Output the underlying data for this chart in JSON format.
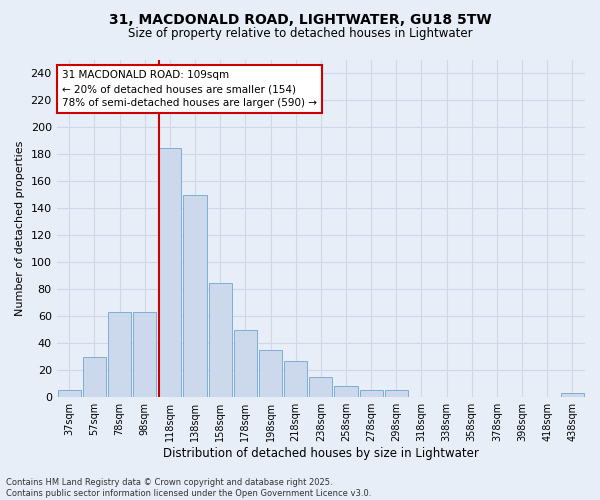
{
  "title_line1": "31, MACDONALD ROAD, LIGHTWATER, GU18 5TW",
  "title_line2": "Size of property relative to detached houses in Lightwater",
  "xlabel": "Distribution of detached houses by size in Lightwater",
  "ylabel": "Number of detached properties",
  "bins": [
    "37sqm",
    "57sqm",
    "78sqm",
    "98sqm",
    "118sqm",
    "138sqm",
    "158sqm",
    "178sqm",
    "198sqm",
    "218sqm",
    "238sqm",
    "258sqm",
    "278sqm",
    "298sqm",
    "318sqm",
    "338sqm",
    "358sqm",
    "378sqm",
    "398sqm",
    "418sqm",
    "438sqm"
  ],
  "values": [
    5,
    30,
    63,
    63,
    185,
    150,
    85,
    50,
    35,
    27,
    15,
    8,
    5,
    5,
    0,
    0,
    0,
    0,
    0,
    0,
    3
  ],
  "bar_color": "#ccd9ed",
  "bar_edge_color": "#7bafd4",
  "background_color": "#e8eef8",
  "grid_color": "#d0d8e8",
  "vline_color": "#cc0000",
  "annotation_text": "31 MACDONALD ROAD: 109sqm\n← 20% of detached houses are smaller (154)\n78% of semi-detached houses are larger (590) →",
  "annotation_box_color": "#ffffff",
  "annotation_box_edge": "#cc0000",
  "ylim": [
    0,
    250
  ],
  "yticks": [
    0,
    20,
    40,
    60,
    80,
    100,
    120,
    140,
    160,
    180,
    200,
    220,
    240
  ],
  "footnote": "Contains HM Land Registry data © Crown copyright and database right 2025.\nContains public sector information licensed under the Open Government Licence v3.0.",
  "vline_x_index": 3.55
}
